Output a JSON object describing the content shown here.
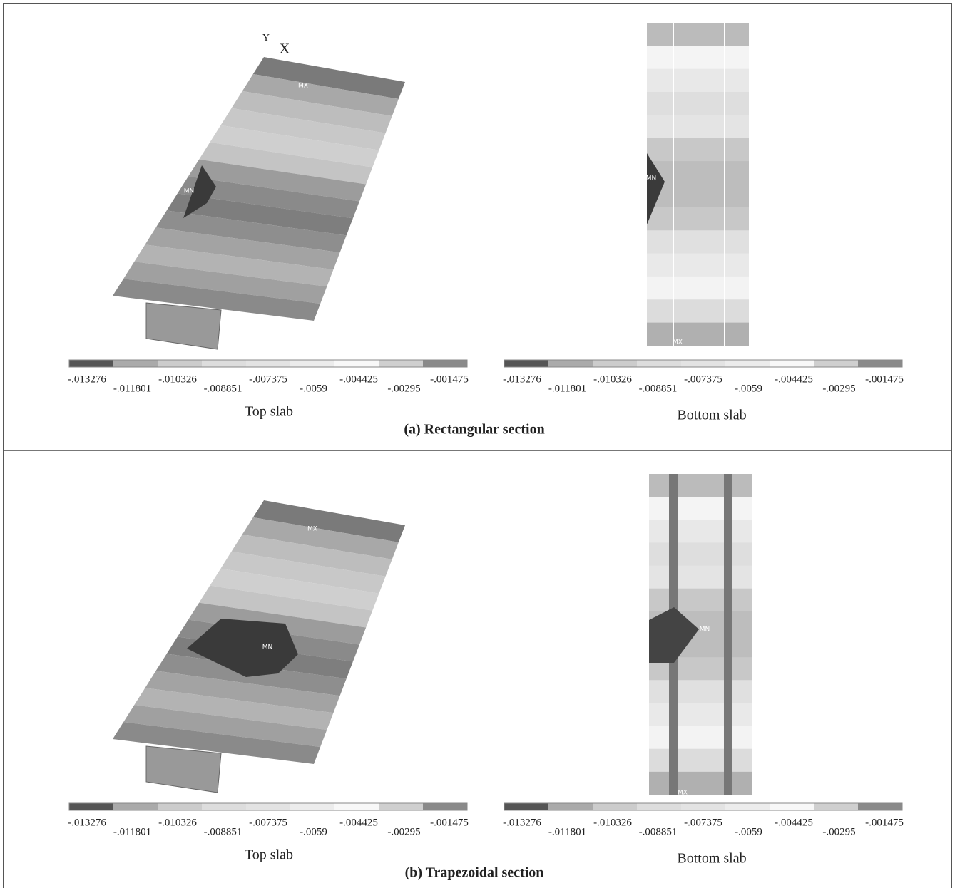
{
  "panels": [
    {
      "caption": "(a) Rectangular section",
      "plots": [
        {
          "title": "Top slab",
          "axis_labels": [
            "Y",
            "X"
          ],
          "markers": [
            "MX",
            "MN"
          ],
          "legend": [
            "-.013276",
            "-.011801",
            "-.010326",
            "-.008851",
            "-.007375",
            "-.0059",
            "-.004425",
            "-.00295",
            "-.001475"
          ]
        },
        {
          "title": "Bottom slab",
          "markers": [
            "MN",
            "MX"
          ],
          "legend": [
            "-.013276",
            "-.011801",
            "-.010326",
            "-.008851",
            "-.007375",
            "-.0059",
            "-.004425",
            "-.00295",
            "-.001475"
          ]
        }
      ]
    },
    {
      "caption": "(b) Trapezoidal section",
      "plots": [
        {
          "title": "Top slab",
          "markers": [
            "MX",
            "MN"
          ],
          "legend": [
            "-.013276",
            "-.011801",
            "-.010326",
            "-.008851",
            "-.007375",
            "-.0059",
            "-.004425",
            "-.00295",
            "-.001475"
          ]
        },
        {
          "title": "Bottom slab",
          "markers": [
            "MN",
            "MX"
          ],
          "legend": [
            "-.013276",
            "-.011801",
            "-.010326",
            "-.008851",
            "-.007375",
            "-.0059",
            "-.004425",
            "-.00295",
            "-.001475"
          ]
        }
      ]
    }
  ]
}
